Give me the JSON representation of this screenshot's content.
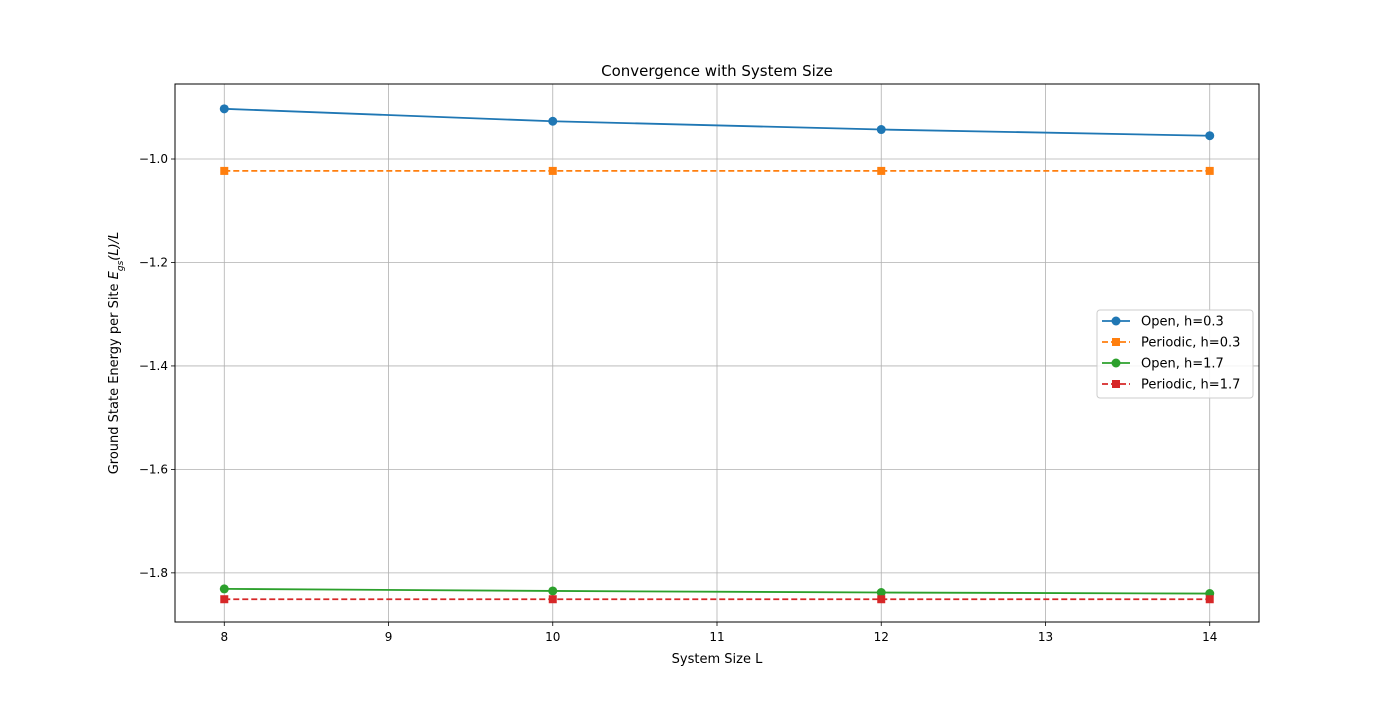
{
  "chart_data": {
    "type": "line",
    "title": "Convergence with System Size",
    "xlabel": "System Size L",
    "ylabel": {
      "prefix": "Ground State Energy per Site ",
      "symbol": "E",
      "subscript": "gs",
      "suffix": "(L)/L"
    },
    "x": [
      8,
      10,
      12,
      14
    ],
    "xlim": [
      7.7,
      14.3
    ],
    "ylim": [
      -1.895,
      -0.855
    ],
    "xticks": [
      8,
      9,
      10,
      11,
      12,
      13,
      14
    ],
    "yticks": [
      -1.0,
      -1.2,
      -1.4,
      -1.6,
      -1.8
    ],
    "ytick_labels": [
      "−1.0",
      "−1.2",
      "−1.4",
      "−1.6",
      "−1.8"
    ],
    "grid": true,
    "legend_position": "center-right",
    "series": [
      {
        "name": "Open, h=0.3",
        "values": [
          -0.903,
          -0.927,
          -0.943,
          -0.955
        ],
        "color": "#1f77b4",
        "linestyle": "solid",
        "marker": "circle"
      },
      {
        "name": "Periodic, h=0.3",
        "values": [
          -1.023,
          -1.023,
          -1.023,
          -1.023
        ],
        "color": "#ff7f0e",
        "linestyle": "dashed",
        "marker": "square"
      },
      {
        "name": "Open, h=1.7",
        "values": [
          -1.831,
          -1.835,
          -1.838,
          -1.84
        ],
        "color": "#2ca02c",
        "linestyle": "solid",
        "marker": "circle"
      },
      {
        "name": "Periodic, h=1.7",
        "values": [
          -1.851,
          -1.851,
          -1.851,
          -1.851
        ],
        "color": "#d62728",
        "linestyle": "dashed",
        "marker": "square"
      }
    ]
  }
}
